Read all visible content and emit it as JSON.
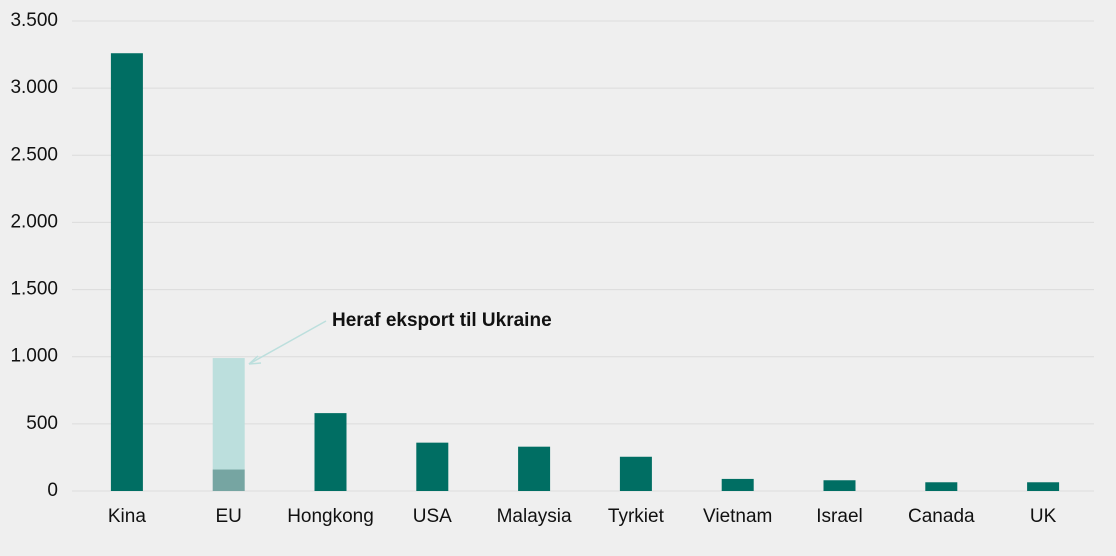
{
  "chart_data": {
    "type": "bar",
    "categories": [
      "Kina",
      "EU",
      "Hongkong",
      "USA",
      "Malaysia",
      "Tyrkiet",
      "Vietnam",
      "Israel",
      "Canada",
      "UK"
    ],
    "series": [
      {
        "color": "#006e63",
        "colors": [
          "#006e63",
          "#76a5a2",
          "#006e63",
          "#006e63",
          "#006e63",
          "#006e63",
          "#006e63",
          "#006e63",
          "#006e63",
          "#006e63"
        ],
        "values": [
          3260,
          160,
          580,
          360,
          330,
          255,
          90,
          80,
          65,
          65
        ]
      },
      {
        "color": "#bcdfdd",
        "values": [
          null,
          830,
          null,
          null,
          null,
          null,
          null,
          null,
          null,
          null
        ]
      }
    ],
    "annotation": {
      "text": "Heraf eksport til Ukraine",
      "color": "#bcdfdd"
    },
    "ylim": [
      0,
      3500
    ],
    "yticks": [
      0,
      500,
      {
        "value": 1000,
        "label": "1.000"
      },
      {
        "value": 1500,
        "label": "1.500"
      },
      {
        "value": 2000,
        "label": "2.000"
      },
      {
        "value": 2500,
        "label": "2.500"
      },
      {
        "value": 3000,
        "label": "3.000"
      },
      {
        "value": 3500,
        "label": "3.500"
      }
    ],
    "grid": true
  }
}
